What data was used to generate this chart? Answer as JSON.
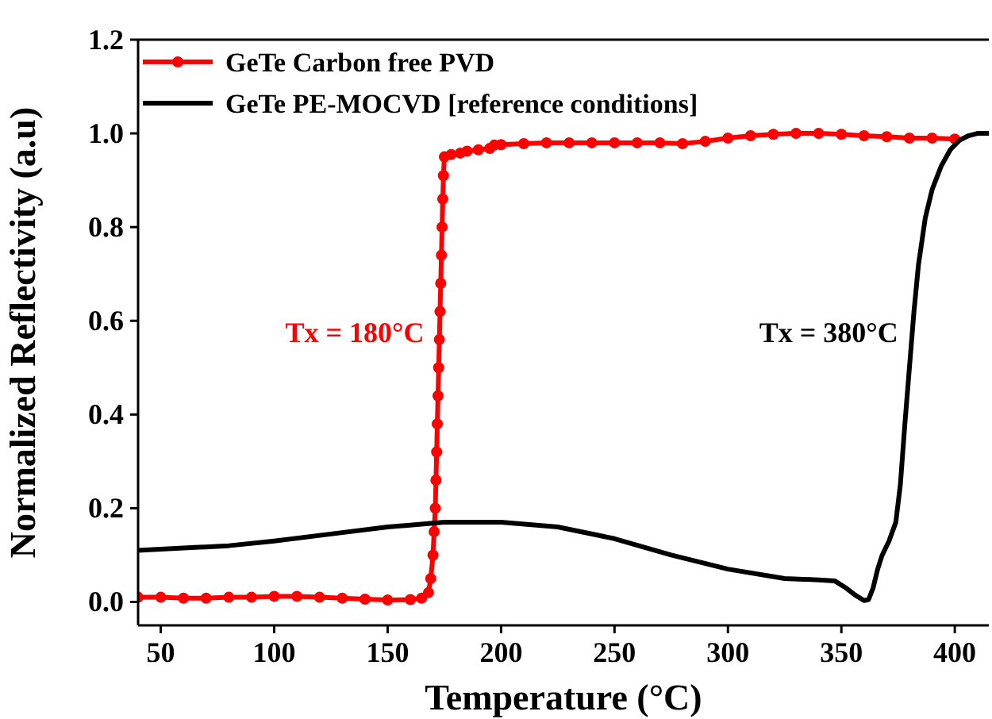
{
  "chart_data": {
    "type": "line",
    "xlabel": "Temperature (°C)",
    "ylabel": "Normalized Reflectivity (a.u)",
    "xlim": [
      40,
      415
    ],
    "xticks": [
      50,
      100,
      150,
      200,
      250,
      300,
      350,
      400
    ],
    "ylim": [
      -0.05,
      1.2
    ],
    "yticks": [
      {
        "value": 0,
        "label": "0.0"
      },
      {
        "value": 0.2,
        "label": "0.2"
      },
      {
        "value": 0.4,
        "label": "0.4"
      },
      {
        "value": 0.6,
        "label": "0.6"
      },
      {
        "value": 0.8,
        "label": "0.8"
      },
      {
        "value": 1.0,
        "label": "1.0"
      },
      {
        "value": 1.2,
        "label": "1.2"
      }
    ],
    "legend": "top left",
    "grid": false,
    "series": [
      {
        "name": "GeTe Carbon free PVD",
        "color": "#ff0000",
        "marker": "circle",
        "x": [
          40,
          50,
          60,
          70,
          80,
          90,
          100,
          110,
          120,
          130,
          140,
          150,
          160,
          165,
          168,
          169,
          170,
          170.5,
          171,
          171.3,
          171.6,
          171.9,
          172.2,
          172.5,
          172.8,
          173.1,
          173.4,
          173.7,
          174,
          174.3,
          174.6,
          175,
          178,
          182,
          185,
          190,
          195,
          197,
          200,
          210,
          220,
          230,
          240,
          250,
          260,
          270,
          280,
          290,
          300,
          310,
          320,
          330,
          340,
          350,
          360,
          370,
          380,
          390,
          400
        ],
        "values": [
          0.01,
          0.01,
          0.008,
          0.008,
          0.01,
          0.01,
          0.012,
          0.012,
          0.01,
          0.008,
          0.006,
          0.004,
          0.005,
          0.008,
          0.02,
          0.05,
          0.1,
          0.15,
          0.2,
          0.26,
          0.32,
          0.38,
          0.44,
          0.5,
          0.56,
          0.62,
          0.68,
          0.74,
          0.8,
          0.86,
          0.91,
          0.95,
          0.955,
          0.958,
          0.962,
          0.965,
          0.968,
          0.975,
          0.976,
          0.978,
          0.98,
          0.98,
          0.98,
          0.98,
          0.98,
          0.98,
          0.978,
          0.983,
          0.99,
          0.995,
          0.998,
          1.0,
          1.0,
          0.998,
          0.995,
          0.993,
          0.99,
          0.99,
          0.988
        ]
      },
      {
        "name": "GeTe PE-MOCVD [reference conditions]",
        "color": "#000000",
        "marker": "none",
        "x": [
          40,
          60,
          80,
          100,
          125,
          150,
          175,
          200,
          225,
          250,
          275,
          300,
          325,
          340,
          347,
          352,
          356,
          360,
          362,
          364,
          366,
          368,
          371,
          374,
          376,
          378,
          380,
          382,
          384,
          387,
          390,
          394,
          398,
          402,
          406,
          410,
          415
        ],
        "values": [
          0.11,
          0.115,
          0.12,
          0.13,
          0.145,
          0.16,
          0.17,
          0.17,
          0.16,
          0.135,
          0.1,
          0.07,
          0.05,
          0.047,
          0.045,
          0.03,
          0.015,
          0.003,
          0.005,
          0.03,
          0.07,
          0.1,
          0.13,
          0.17,
          0.25,
          0.38,
          0.5,
          0.62,
          0.72,
          0.82,
          0.88,
          0.93,
          0.965,
          0.985,
          0.995,
          1.0,
          1.0
        ]
      }
    ],
    "annotations": [
      "Tx = 180°C",
      "Tx = 380°C"
    ]
  }
}
